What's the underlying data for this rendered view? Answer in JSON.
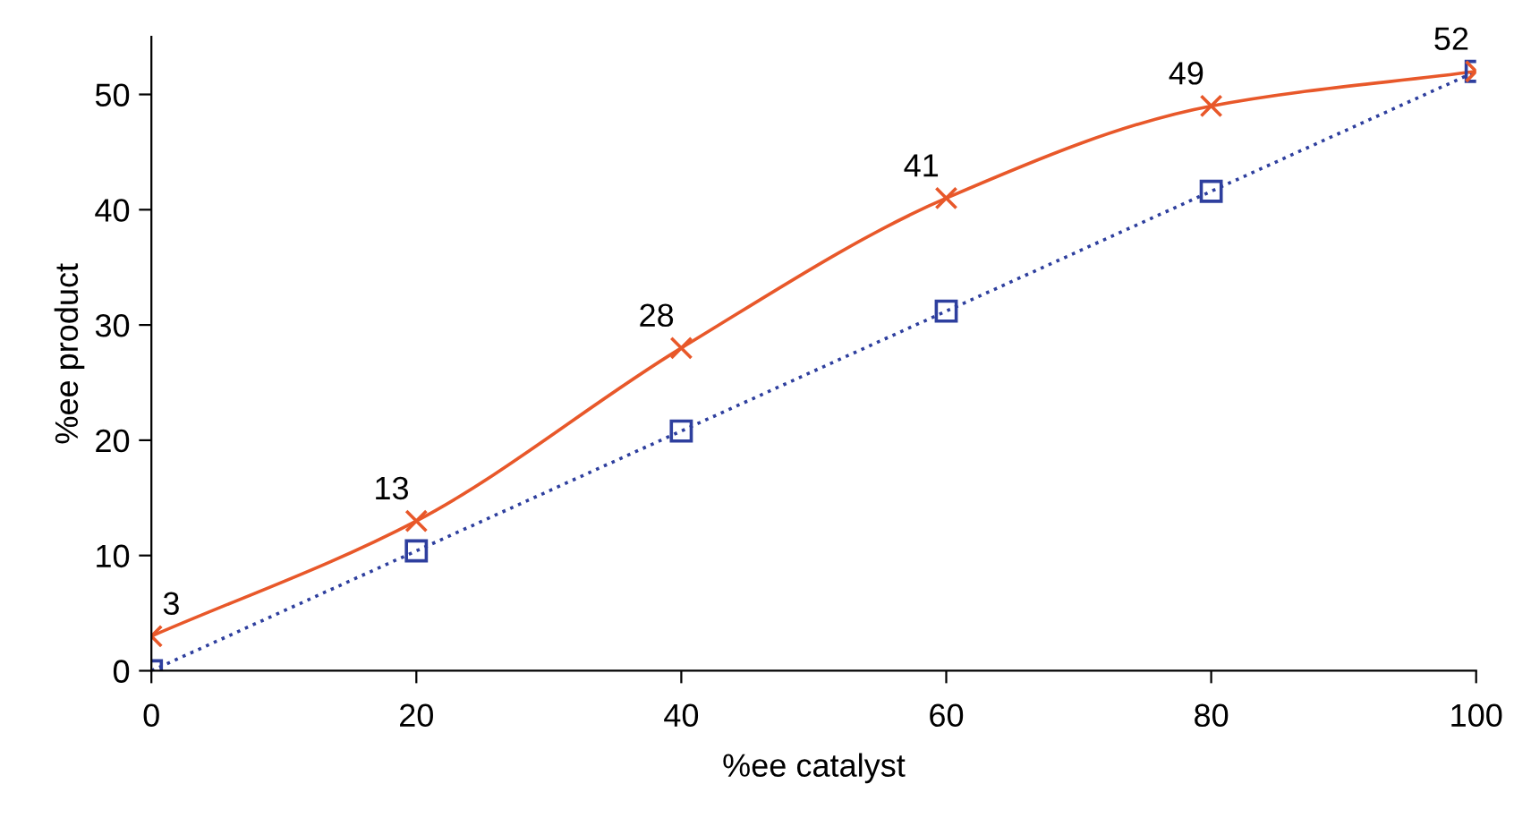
{
  "chart_data": {
    "type": "line",
    "xlabel": "%ee catalyst",
    "ylabel": "%ee product",
    "x": [
      0,
      20,
      40,
      60,
      80,
      100
    ],
    "series": [
      {
        "color": "#2e3f9e",
        "values": [
          0,
          10.4,
          20.8,
          31.2,
          41.6,
          52
        ],
        "marker": "square",
        "line_style": "dotted"
      },
      {
        "color": "#e8582a",
        "values": [
          3,
          13,
          28,
          41,
          49,
          52
        ],
        "marker": "cross",
        "line_style": "solid",
        "value_labels": [
          "3",
          "13",
          "28",
          "41",
          "49",
          "52"
        ]
      }
    ],
    "xlim": [
      0,
      100
    ],
    "xticks": [
      0,
      20,
      40,
      60,
      80,
      100
    ],
    "ylim": [
      0,
      55
    ],
    "yticks": [
      0,
      10,
      20,
      30,
      40,
      50
    ],
    "grid": false
  }
}
